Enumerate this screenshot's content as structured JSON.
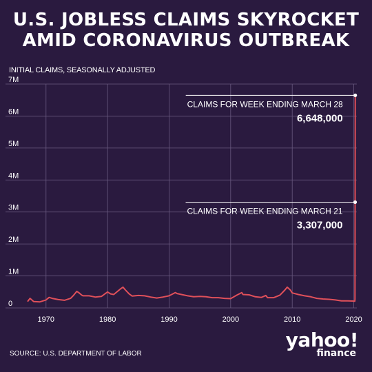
{
  "title_line1": "U.S. JOBLESS CLAIMS SKYROCKET",
  "title_line2": "AMID CORONAVIRUS OUTBREAK",
  "source": "SOURCE:  U.S. DEPARTMENT OF LABOR",
  "logo": {
    "main": "yahoo!",
    "sub": "finance"
  },
  "colors": {
    "background": "#2a1a3f",
    "line": "#e0505a",
    "text": "#ffffff",
    "grid": "#6a5a80"
  },
  "chart_data": {
    "type": "line",
    "title": "U.S. JOBLESS CLAIMS SKYROCKET AMID CORONAVIRUS OUTBREAK",
    "ylabel": "INITIAL CLAIMS, SEASONALLY ADJUSTED",
    "xlabel": "",
    "ylim": [
      0,
      7000000
    ],
    "xlim": [
      1967,
      2020.5
    ],
    "grid": true,
    "ytick_labels": [
      "0",
      "1M",
      "2M",
      "3M",
      "4M",
      "5M",
      "6M",
      "7M"
    ],
    "ytick_values": [
      0,
      1000000,
      2000000,
      3000000,
      4000000,
      5000000,
      6000000,
      7000000
    ],
    "xtick_labels": [
      "1970",
      "1980",
      "1990",
      "2000",
      "2010",
      "2020"
    ],
    "xtick_values": [
      1970,
      1980,
      1990,
      2000,
      2010,
      2020
    ],
    "series": [
      {
        "x": [
          1967,
          1967.4,
          1968,
          1969,
          1970,
          1970.5,
          1971,
          1972,
          1973,
          1974,
          1974.5,
          1975,
          1975.3,
          1975.8,
          1976,
          1977,
          1978,
          1979,
          1980,
          1980.5,
          1981,
          1982,
          1982.5,
          1982.9,
          1983.5,
          1984,
          1985,
          1986,
          1987,
          1988,
          1989,
          1990,
          1991,
          1991.3,
          1992,
          1993,
          1994,
          1995,
          1996,
          1997,
          1998,
          1999,
          2000,
          2001,
          2001.8,
          2002,
          2003,
          2004,
          2005,
          2005.7,
          2006,
          2007,
          2008,
          2008.8,
          2009.2,
          2009.7,
          2010,
          2011,
          2012,
          2013,
          2014,
          2015,
          2016,
          2017,
          2018,
          2019,
          2019.9,
          2020.1,
          2020.18,
          2020.2,
          2020.22,
          2020.24
        ],
        "y": [
          200000,
          300000,
          200000,
          190000,
          250000,
          330000,
          300000,
          260000,
          240000,
          300000,
          400000,
          520000,
          480000,
          400000,
          380000,
          380000,
          340000,
          360000,
          500000,
          440000,
          420000,
          580000,
          650000,
          560000,
          440000,
          370000,
          390000,
          380000,
          340000,
          310000,
          340000,
          380000,
          480000,
          450000,
          420000,
          380000,
          350000,
          360000,
          350000,
          320000,
          320000,
          300000,
          290000,
          400000,
          480000,
          420000,
          410000,
          350000,
          330000,
          390000,
          320000,
          320000,
          400000,
          560000,
          650000,
          560000,
          470000,
          420000,
          380000,
          350000,
          300000,
          280000,
          270000,
          250000,
          220000,
          220000,
          215000,
          210000,
          211000,
          280000,
          3307000,
          6648000
        ]
      }
    ],
    "annotations": [
      {
        "label": "CLAIMS FOR WEEK ENDING MARCH 28",
        "value": "6,648,000",
        "x": 2020.24,
        "y": 6648000
      },
      {
        "label": "CLAIMS FOR WEEK ENDING MARCH 21",
        "value": "3,307,000",
        "x": 2020.22,
        "y": 3307000
      }
    ]
  }
}
